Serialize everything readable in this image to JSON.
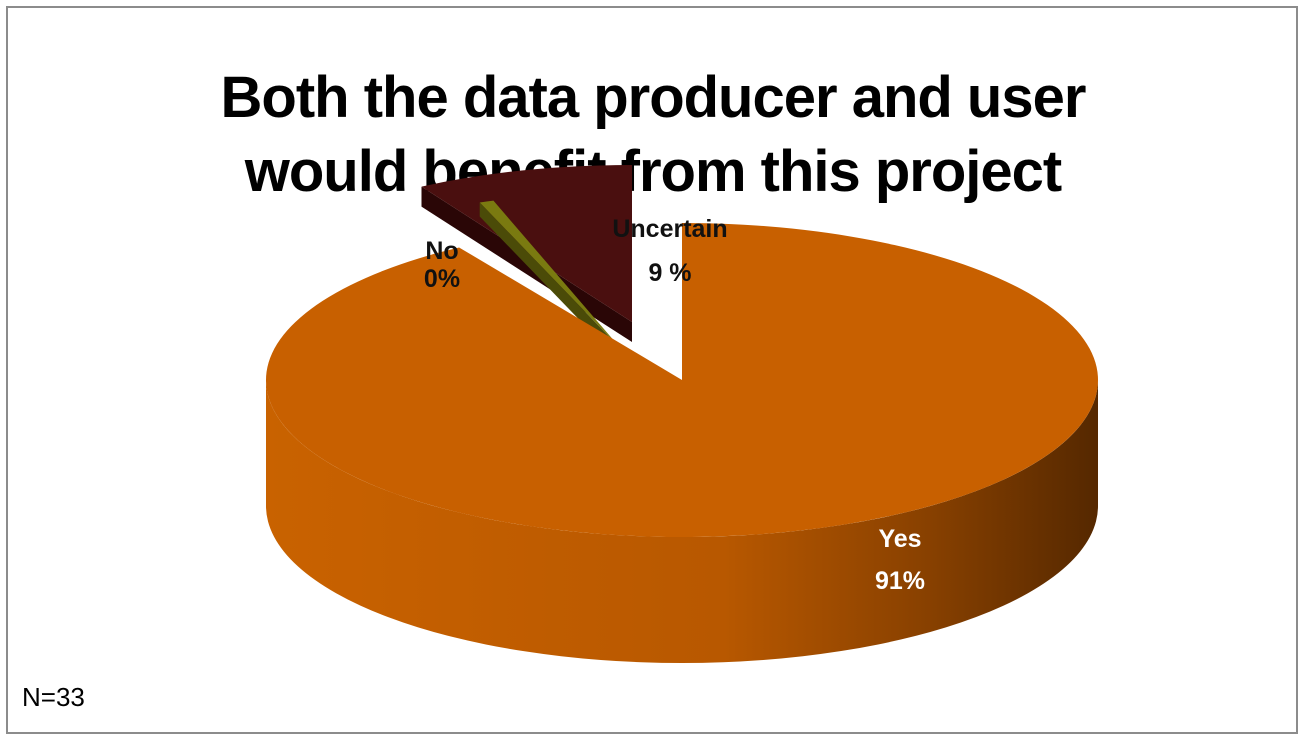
{
  "chart_data": {
    "type": "pie",
    "title_lines": [
      "Both the data producer and user",
      "would benefit from this project"
    ],
    "slices": [
      {
        "category": "Yes",
        "percent_label": "91%",
        "value": 91,
        "color": "#c86000"
      },
      {
        "category": "No",
        "percent_label": "0%",
        "value": 0,
        "color": "#7a7a10"
      },
      {
        "category": "Uncertain",
        "percent_label": "9 %",
        "value": 9,
        "color": "#4a0f0f"
      }
    ],
    "note": "N=33"
  }
}
